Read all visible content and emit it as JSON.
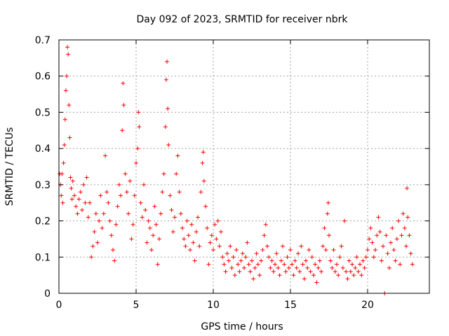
{
  "chart_data": {
    "type": "scatter",
    "title": "Day 092 of 2023, SRMTID for receiver nbrk",
    "xlabel": "GPS time / hours",
    "ylabel": "SRMTID / TECUs",
    "xlim": [
      0,
      24
    ],
    "ylim": [
      0,
      0.7
    ],
    "x_ticks": [
      0,
      5,
      10,
      15,
      20
    ],
    "x_tick_labels": [
      "0",
      "5",
      "10",
      "15",
      "20"
    ],
    "y_ticks": [
      0,
      0.1,
      0.2,
      0.3,
      0.4,
      0.5,
      0.6,
      0.7
    ],
    "y_tick_labels": [
      "0",
      "0.1",
      "0.2",
      "0.3",
      "0.4",
      "0.5",
      "0.6",
      "0.7"
    ],
    "grid": true,
    "marker": "plus",
    "color": "#ff0000",
    "series": [
      {
        "name": "SRMTID",
        "points": [
          [
            0.05,
            0.33
          ],
          [
            0.1,
            0.3
          ],
          [
            0.15,
            0.27
          ],
          [
            0.2,
            0.33
          ],
          [
            0.25,
            0.25
          ],
          [
            0.3,
            0.36
          ],
          [
            0.35,
            0.41
          ],
          [
            0.4,
            0.48
          ],
          [
            0.45,
            0.56
          ],
          [
            0.5,
            0.6
          ],
          [
            0.55,
            0.68
          ],
          [
            0.6,
            0.66
          ],
          [
            0.65,
            0.52
          ],
          [
            0.7,
            0.43
          ],
          [
            0.75,
            0.32
          ],
          [
            0.8,
            0.29
          ],
          [
            0.85,
            0.26
          ],
          [
            0.9,
            0.31
          ],
          [
            1.0,
            0.27
          ],
          [
            1.1,
            0.24
          ],
          [
            1.2,
            0.22
          ],
          [
            1.3,
            0.26
          ],
          [
            1.4,
            0.28
          ],
          [
            1.5,
            0.23
          ],
          [
            1.6,
            0.3
          ],
          [
            1.7,
            0.25
          ],
          [
            1.8,
            0.32
          ],
          [
            1.9,
            0.21
          ],
          [
            2.0,
            0.25
          ],
          [
            2.1,
            0.1
          ],
          [
            2.2,
            0.13
          ],
          [
            2.3,
            0.17
          ],
          [
            2.4,
            0.22
          ],
          [
            2.5,
            0.14
          ],
          [
            2.6,
            0.2
          ],
          [
            2.7,
            0.27
          ],
          [
            2.8,
            0.18
          ],
          [
            2.9,
            0.22
          ],
          [
            3.0,
            0.38
          ],
          [
            3.1,
            0.28
          ],
          [
            3.2,
            0.25
          ],
          [
            3.3,
            0.2
          ],
          [
            3.4,
            0.16
          ],
          [
            3.5,
            0.12
          ],
          [
            3.6,
            0.09
          ],
          [
            3.7,
            0.19
          ],
          [
            3.8,
            0.24
          ],
          [
            3.9,
            0.3
          ],
          [
            4.0,
            0.27
          ],
          [
            4.1,
            0.45
          ],
          [
            4.15,
            0.58
          ],
          [
            4.2,
            0.52
          ],
          [
            4.3,
            0.33
          ],
          [
            4.4,
            0.28
          ],
          [
            4.5,
            0.22
          ],
          [
            4.6,
            0.31
          ],
          [
            4.7,
            0.15
          ],
          [
            4.8,
            0.19
          ],
          [
            4.9,
            0.27
          ],
          [
            5.0,
            0.36
          ],
          [
            5.1,
            0.4
          ],
          [
            5.15,
            0.5
          ],
          [
            5.2,
            0.46
          ],
          [
            5.3,
            0.25
          ],
          [
            5.4,
            0.21
          ],
          [
            5.5,
            0.3
          ],
          [
            5.6,
            0.23
          ],
          [
            5.7,
            0.14
          ],
          [
            5.8,
            0.2
          ],
          [
            5.9,
            0.18
          ],
          [
            6.0,
            0.12
          ],
          [
            6.1,
            0.16
          ],
          [
            6.2,
            0.24
          ],
          [
            6.3,
            0.19
          ],
          [
            6.4,
            0.08
          ],
          [
            6.5,
            0.15
          ],
          [
            6.6,
            0.22
          ],
          [
            6.7,
            0.28
          ],
          [
            6.8,
            0.33
          ],
          [
            6.9,
            0.46
          ],
          [
            6.95,
            0.59
          ],
          [
            7.0,
            0.64
          ],
          [
            7.05,
            0.51
          ],
          [
            7.1,
            0.41
          ],
          [
            7.2,
            0.27
          ],
          [
            7.3,
            0.23
          ],
          [
            7.4,
            0.17
          ],
          [
            7.5,
            0.21
          ],
          [
            7.6,
            0.33
          ],
          [
            7.7,
            0.38
          ],
          [
            7.8,
            0.28
          ],
          [
            7.9,
            0.22
          ],
          [
            8.0,
            0.18
          ],
          [
            8.1,
            0.15
          ],
          [
            8.2,
            0.13
          ],
          [
            8.3,
            0.2
          ],
          [
            8.4,
            0.16
          ],
          [
            8.5,
            0.12
          ],
          [
            8.6,
            0.19
          ],
          [
            8.7,
            0.14
          ],
          [
            8.8,
            0.09
          ],
          [
            8.9,
            0.17
          ],
          [
            9.0,
            0.21
          ],
          [
            9.1,
            0.13
          ],
          [
            9.2,
            0.28
          ],
          [
            9.3,
            0.36
          ],
          [
            9.35,
            0.39
          ],
          [
            9.4,
            0.31
          ],
          [
            9.5,
            0.24
          ],
          [
            9.6,
            0.18
          ],
          [
            9.7,
            0.08
          ],
          [
            9.8,
            0.14
          ],
          [
            9.9,
            0.16
          ],
          [
            10.0,
            0.12
          ],
          [
            10.1,
            0.19
          ],
          [
            10.2,
            0.15
          ],
          [
            10.3,
            0.2
          ],
          [
            10.4,
            0.13
          ],
          [
            10.5,
            0.17
          ],
          [
            10.6,
            0.1
          ],
          [
            10.7,
            0.08
          ],
          [
            10.8,
            0.06
          ],
          [
            10.9,
            0.11
          ],
          [
            11.0,
            0.09
          ],
          [
            11.1,
            0.13
          ],
          [
            11.2,
            0.07
          ],
          [
            11.3,
            0.1
          ],
          [
            11.4,
            0.05
          ],
          [
            11.5,
            0.12
          ],
          [
            11.6,
            0.08
          ],
          [
            11.7,
            0.06
          ],
          [
            11.8,
            0.09
          ],
          [
            11.9,
            0.11
          ],
          [
            12.0,
            0.07
          ],
          [
            12.1,
            0.1
          ],
          [
            12.2,
            0.14
          ],
          [
            12.3,
            0.08
          ],
          [
            12.4,
            0.06
          ],
          [
            12.5,
            0.09
          ],
          [
            12.6,
            0.04
          ],
          [
            12.7,
            0.07
          ],
          [
            12.8,
            0.11
          ],
          [
            12.9,
            0.08
          ],
          [
            13.0,
            0.05
          ],
          [
            13.1,
            0.09
          ],
          [
            13.2,
            0.12
          ],
          [
            13.3,
            0.16
          ],
          [
            13.4,
            0.19
          ],
          [
            13.5,
            0.13
          ],
          [
            13.6,
            0.1
          ],
          [
            13.7,
            0.07
          ],
          [
            13.8,
            0.09
          ],
          [
            13.9,
            0.06
          ],
          [
            14.0,
            0.08
          ],
          [
            14.1,
            0.11
          ],
          [
            14.2,
            0.07
          ],
          [
            14.3,
            0.05
          ],
          [
            14.4,
            0.09
          ],
          [
            14.5,
            0.13
          ],
          [
            14.6,
            0.08
          ],
          [
            14.7,
            0.06
          ],
          [
            14.8,
            0.1
          ],
          [
            14.9,
            0.07
          ],
          [
            15.0,
            0.12
          ],
          [
            15.1,
            0.08
          ],
          [
            15.2,
            0.05
          ],
          [
            15.3,
            0.09
          ],
          [
            15.4,
            0.07
          ],
          [
            15.5,
            0.11
          ],
          [
            15.6,
            0.06
          ],
          [
            15.7,
            0.13
          ],
          [
            15.8,
            0.08
          ],
          [
            15.9,
            0.04
          ],
          [
            16.0,
            0.09
          ],
          [
            16.1,
            0.07
          ],
          [
            16.2,
            0.12
          ],
          [
            16.3,
            0.06
          ],
          [
            16.4,
            0.1
          ],
          [
            16.5,
            0.05
          ],
          [
            16.6,
            0.08
          ],
          [
            16.7,
            0.03
          ],
          [
            16.8,
            0.07
          ],
          [
            16.9,
            0.09
          ],
          [
            17.0,
            0.06
          ],
          [
            17.1,
            0.13
          ],
          [
            17.2,
            0.18
          ],
          [
            17.3,
            0.12
          ],
          [
            17.4,
            0.22
          ],
          [
            17.45,
            0.25
          ],
          [
            17.5,
            0.16
          ],
          [
            17.6,
            0.09
          ],
          [
            17.7,
            0.07
          ],
          [
            17.8,
            0.12
          ],
          [
            17.9,
            0.06
          ],
          [
            18.0,
            0.08
          ],
          [
            18.1,
            0.05
          ],
          [
            18.2,
            0.1
          ],
          [
            18.3,
            0.13
          ],
          [
            18.4,
            0.07
          ],
          [
            18.5,
            0.2
          ],
          [
            18.6,
            0.06
          ],
          [
            18.7,
            0.04
          ],
          [
            18.8,
            0.09
          ],
          [
            18.9,
            0.06
          ],
          [
            19.0,
            0.08
          ],
          [
            19.1,
            0.05
          ],
          [
            19.2,
            0.07
          ],
          [
            19.3,
            0.1
          ],
          [
            19.4,
            0.06
          ],
          [
            19.5,
            0.08
          ],
          [
            19.6,
            0.05
          ],
          [
            19.7,
            0.09
          ],
          [
            19.8,
            0.07
          ],
          [
            19.9,
            0.1
          ],
          [
            20.0,
            0.12
          ],
          [
            20.1,
            0.15
          ],
          [
            20.2,
            0.18
          ],
          [
            20.3,
            0.14
          ],
          [
            20.4,
            0.1
          ],
          [
            20.5,
            0.12
          ],
          [
            20.6,
            0.16
          ],
          [
            20.7,
            0.21
          ],
          [
            20.8,
            0.17
          ],
          [
            20.9,
            0.09
          ],
          [
            21.0,
            0.13
          ],
          [
            21.1,
            0.0
          ],
          [
            21.2,
            0.16
          ],
          [
            21.3,
            0.11
          ],
          [
            21.4,
            0.07
          ],
          [
            21.5,
            0.14
          ],
          [
            21.6,
            0.18
          ],
          [
            21.7,
            0.12
          ],
          [
            21.8,
            0.09
          ],
          [
            21.9,
            0.15
          ],
          [
            22.0,
            0.2
          ],
          [
            22.1,
            0.08
          ],
          [
            22.2,
            0.16
          ],
          [
            22.3,
            0.22
          ],
          [
            22.4,
            0.18
          ],
          [
            22.5,
            0.13
          ],
          [
            22.55,
            0.29
          ],
          [
            22.6,
            0.21
          ],
          [
            22.7,
            0.16
          ],
          [
            22.8,
            0.11
          ],
          [
            22.9,
            0.08
          ]
        ]
      }
    ]
  }
}
